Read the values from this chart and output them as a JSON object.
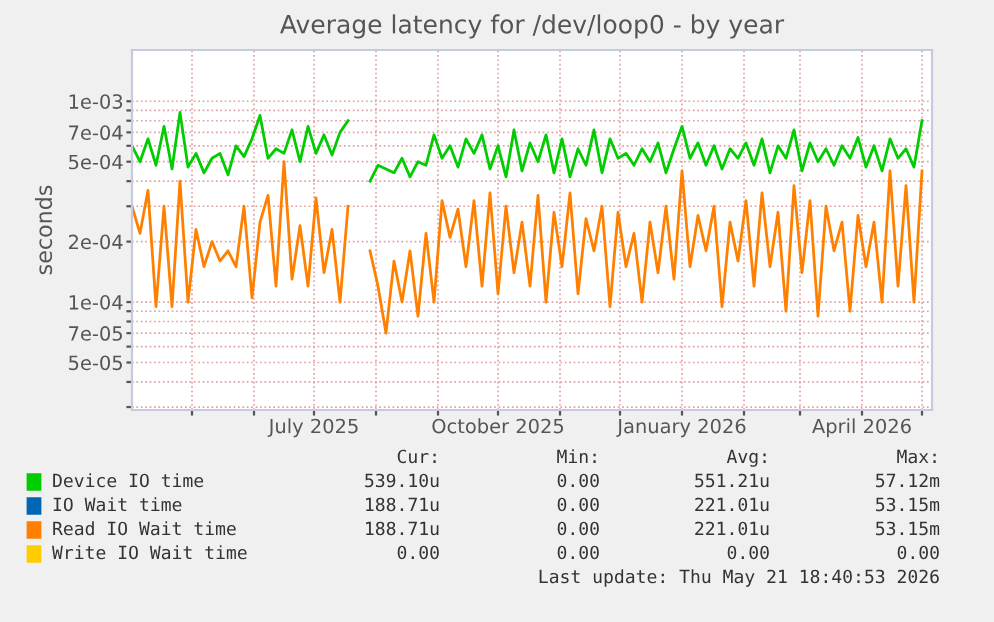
{
  "chart_data": {
    "type": "line",
    "title": "Average latency for /dev/loop0 - by year",
    "ylabel": "seconds",
    "log": "y",
    "grid": true,
    "legend": "bottom",
    "marker": "none",
    "line_style": "solid",
    "xlim": [
      "2025-04-01",
      "2026-05-06"
    ],
    "xticks": [
      {
        "value": "2025-05-01",
        "label": null
      },
      {
        "value": "2025-06-01",
        "label": null
      },
      {
        "value": "2025-07-01",
        "label": "July 2025"
      },
      {
        "value": "2025-08-01",
        "label": null
      },
      {
        "value": "2025-09-01",
        "label": null
      },
      {
        "value": "2025-10-01",
        "label": "October 2025"
      },
      {
        "value": "2025-11-01",
        "label": null
      },
      {
        "value": "2025-12-01",
        "label": null
      },
      {
        "value": "2026-01-01",
        "label": "January 2026"
      },
      {
        "value": "2026-02-01",
        "label": null
      },
      {
        "value": "2026-03-01",
        "label": null
      },
      {
        "value": "2026-04-01",
        "label": "April 2026"
      },
      {
        "value": "2026-05-01",
        "label": null
      }
    ],
    "ylim": [
      2.9e-05,
      0.0018
    ],
    "yticks": [
      {
        "value": 3e-05,
        "label": null
      },
      {
        "value": 4e-05,
        "label": null
      },
      {
        "value": 5e-05,
        "label": "5e-05"
      },
      {
        "value": 6e-05,
        "label": null
      },
      {
        "value": 7e-05,
        "label": "7e-05"
      },
      {
        "value": 8e-05,
        "label": null
      },
      {
        "value": 9e-05,
        "label": null
      },
      {
        "value": 0.0001,
        "label": "1e-04"
      },
      {
        "value": 0.0002,
        "label": "2e-04"
      },
      {
        "value": 0.0003,
        "label": null
      },
      {
        "value": 0.0004,
        "label": null
      },
      {
        "value": 0.0005,
        "label": "5e-04"
      },
      {
        "value": 0.0006,
        "label": null
      },
      {
        "value": 0.0007,
        "label": "7e-04"
      },
      {
        "value": 0.0008,
        "label": null
      },
      {
        "value": 0.0009,
        "label": null
      },
      {
        "value": 0.001,
        "label": "1e-03"
      }
    ],
    "x": [
      "2025-04-01",
      "2025-04-05",
      "2025-04-09",
      "2025-04-13",
      "2025-04-17",
      "2025-04-21",
      "2025-04-25",
      "2025-04-29",
      "2025-05-03",
      "2025-05-07",
      "2025-05-11",
      "2025-05-15",
      "2025-05-19",
      "2025-05-23",
      "2025-05-27",
      "2025-05-31",
      "2025-06-04",
      "2025-06-08",
      "2025-06-12",
      "2025-06-16",
      "2025-06-20",
      "2025-06-24",
      "2025-06-28",
      "2025-07-02",
      "2025-07-06",
      "2025-07-10",
      "2025-07-14",
      "2025-07-18",
      "2025-07-24",
      "2025-07-29",
      "2025-08-02",
      "2025-08-06",
      "2025-08-10",
      "2025-08-14",
      "2025-08-18",
      "2025-08-22",
      "2025-08-26",
      "2025-08-30",
      "2025-09-03",
      "2025-09-07",
      "2025-09-11",
      "2025-09-15",
      "2025-09-19",
      "2025-09-23",
      "2025-09-27",
      "2025-10-01",
      "2025-10-05",
      "2025-10-09",
      "2025-10-13",
      "2025-10-17",
      "2025-10-21",
      "2025-10-25",
      "2025-10-29",
      "2025-11-02",
      "2025-11-06",
      "2025-11-10",
      "2025-11-14",
      "2025-11-18",
      "2025-11-22",
      "2025-11-26",
      "2025-11-30",
      "2025-12-04",
      "2025-12-08",
      "2025-12-12",
      "2025-12-16",
      "2025-12-20",
      "2025-12-24",
      "2025-12-28",
      "2026-01-01",
      "2026-01-05",
      "2026-01-09",
      "2026-01-13",
      "2026-01-17",
      "2026-01-21",
      "2026-01-25",
      "2026-01-29",
      "2026-02-02",
      "2026-02-06",
      "2026-02-10",
      "2026-02-14",
      "2026-02-18",
      "2026-02-22",
      "2026-02-26",
      "2026-03-02",
      "2026-03-06",
      "2026-03-10",
      "2026-03-14",
      "2026-03-18",
      "2026-03-22",
      "2026-03-26",
      "2026-03-30",
      "2026-04-03",
      "2026-04-07",
      "2026-04-11",
      "2026-04-15",
      "2026-04-19",
      "2026-04-23",
      "2026-04-27",
      "2026-05-01"
    ],
    "series": [
      {
        "name": "Device IO time",
        "color": "#00cc00",
        "values": [
          0.0006,
          0.0005,
          0.00065,
          0.00048,
          0.00075,
          0.00046,
          0.00088,
          0.00047,
          0.00055,
          0.00044,
          0.00052,
          0.00055,
          0.00043,
          0.0006,
          0.00053,
          0.00065,
          0.00085,
          0.00052,
          0.00058,
          0.00055,
          0.00072,
          0.0005,
          0.00075,
          0.00055,
          0.00068,
          0.00054,
          0.0007,
          0.0008,
          null,
          0.0004,
          0.00048,
          0.00046,
          0.00044,
          0.00052,
          0.00042,
          0.0005,
          0.00048,
          0.00068,
          0.00052,
          0.0006,
          0.00047,
          0.00065,
          0.00055,
          0.00068,
          0.00046,
          0.0006,
          0.00042,
          0.00072,
          0.00045,
          0.00062,
          0.0005,
          0.00068,
          0.00044,
          0.00065,
          0.00042,
          0.00058,
          0.00048,
          0.00072,
          0.00044,
          0.00065,
          0.00052,
          0.00055,
          0.00048,
          0.00058,
          0.0005,
          0.00062,
          0.00044,
          0.00058,
          0.00075,
          0.00052,
          0.00062,
          0.00048,
          0.0006,
          0.00046,
          0.00058,
          0.00052,
          0.00062,
          0.00048,
          0.00065,
          0.00044,
          0.0006,
          0.00052,
          0.00072,
          0.00045,
          0.00062,
          0.0005,
          0.00058,
          0.00048,
          0.0006,
          0.00052,
          0.00066,
          0.00047,
          0.0006,
          0.00045,
          0.00065,
          0.00052,
          0.00058,
          0.00047,
          0.0008
        ]
      },
      {
        "name": "IO Wait time",
        "color": "#0066b3",
        "values": [
          null,
          null,
          null,
          null,
          null,
          null,
          null,
          null,
          null,
          null,
          null,
          null,
          null,
          null,
          null,
          null,
          null,
          null,
          null,
          null,
          null,
          null,
          null,
          null,
          null,
          null,
          null,
          null,
          null,
          null,
          null,
          null,
          null,
          null,
          null,
          null,
          null,
          null,
          null,
          null,
          null,
          null,
          null,
          null,
          null,
          null,
          null,
          null,
          null,
          null,
          null,
          null,
          null,
          null,
          null,
          null,
          null,
          null,
          null,
          null,
          null,
          null,
          null,
          null,
          null,
          null,
          null,
          null,
          null,
          null,
          null,
          null,
          null,
          null,
          null,
          null,
          null,
          null,
          null,
          null,
          null,
          null,
          null,
          null,
          null,
          null,
          null,
          null,
          null,
          null,
          null,
          null,
          null,
          null,
          null,
          null,
          null,
          null,
          null
        ]
      },
      {
        "name": "Read IO Wait time",
        "color": "#ff8000",
        "values": [
          0.0003,
          0.00022,
          0.00036,
          9.5e-05,
          0.0003,
          9.5e-05,
          0.0004,
          0.0001,
          0.00023,
          0.00015,
          0.0002,
          0.00016,
          0.00018,
          0.00015,
          0.0003,
          0.000105,
          0.00025,
          0.00034,
          0.00012,
          0.0005,
          0.00013,
          0.00024,
          0.00012,
          0.00033,
          0.00014,
          0.00023,
          0.0001,
          0.0003,
          null,
          0.00018,
          0.00012,
          7e-05,
          0.00016,
          0.0001,
          0.00018,
          8.5e-05,
          0.00022,
          0.0001,
          0.00032,
          0.00021,
          0.00029,
          0.00015,
          0.00032,
          0.00012,
          0.00035,
          0.00011,
          0.0003,
          0.00014,
          0.00025,
          0.00012,
          0.00034,
          0.0001,
          0.00028,
          0.00015,
          0.00035,
          0.00011,
          0.00026,
          0.00018,
          0.0003,
          9.5e-05,
          0.00028,
          0.00015,
          0.00022,
          0.0001,
          0.00025,
          0.00014,
          0.0003,
          0.00013,
          0.00045,
          0.00015,
          0.00027,
          0.00018,
          0.0003,
          9.5e-05,
          0.00025,
          0.00016,
          0.00032,
          0.00012,
          0.00035,
          0.00015,
          0.00028,
          9e-05,
          0.00038,
          0.00014,
          0.00032,
          8.5e-05,
          0.0003,
          0.00018,
          0.00025,
          9e-05,
          0.00027,
          0.00015,
          0.00025,
          0.0001,
          0.00045,
          0.00012,
          0.00038,
          0.0001,
          0.00045
        ]
      },
      {
        "name": "Write IO Wait time",
        "color": "#ffcc00",
        "values": [
          null,
          null,
          null,
          null,
          null,
          null,
          null,
          null,
          null,
          null,
          null,
          null,
          null,
          null,
          null,
          null,
          null,
          null,
          null,
          null,
          null,
          null,
          null,
          null,
          null,
          null,
          null,
          null,
          null,
          null,
          null,
          null,
          null,
          null,
          null,
          null,
          null,
          null,
          null,
          null,
          null,
          null,
          null,
          null,
          null,
          null,
          null,
          null,
          null,
          null,
          null,
          null,
          null,
          null,
          null,
          null,
          null,
          null,
          null,
          null,
          null,
          null,
          null,
          null,
          null,
          null,
          null,
          null,
          null,
          null,
          null,
          null,
          null,
          null,
          null,
          null,
          null,
          null,
          null,
          null,
          null,
          null,
          null,
          null,
          null,
          null,
          null,
          null,
          null,
          null,
          null,
          null,
          null,
          null,
          null,
          null,
          null,
          null,
          null
        ]
      }
    ],
    "annotations": [
      "Cur:",
      "Min:",
      "Avg:",
      "Max:",
      "539.10u",
      "0.00",
      "551.21u",
      "57.12m",
      "188.71u",
      "0.00",
      "221.01u",
      "53.15m",
      "188.71u",
      "0.00",
      "221.01u",
      "53.15m",
      "0.00",
      "0.00",
      "0.00",
      "0.00",
      "Last update: Thu May 21 18:40:53 2026"
    ]
  }
}
